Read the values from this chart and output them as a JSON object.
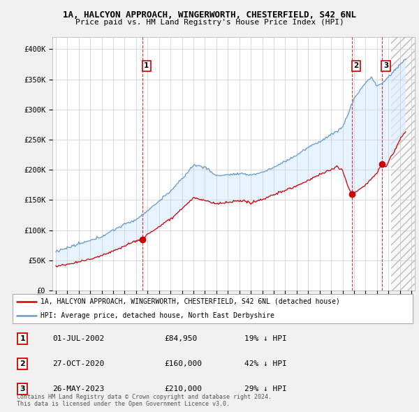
{
  "title1": "1A, HALCYON APPROACH, WINGERWORTH, CHESTERFIELD, S42 6NL",
  "title2": "Price paid vs. HM Land Registry's House Price Index (HPI)",
  "legend_line1": "1A, HALCYON APPROACH, WINGERWORTH, CHESTERFIELD, S42 6NL (detached house)",
  "legend_line2": "HPI: Average price, detached house, North East Derbyshire",
  "transactions": [
    {
      "date": 2002.54,
      "price": 84950,
      "label": "1"
    },
    {
      "date": 2020.83,
      "price": 160000,
      "label": "2"
    },
    {
      "date": 2023.41,
      "price": 210000,
      "label": "3"
    }
  ],
  "transaction_labels": [
    {
      "num": "1",
      "date": "01-JUL-2002",
      "price": "£84,950",
      "pct": "19% ↓ HPI"
    },
    {
      "num": "2",
      "date": "27-OCT-2020",
      "price": "£160,000",
      "pct": "42% ↓ HPI"
    },
    {
      "num": "3",
      "date": "26-MAY-2023",
      "price": "£210,000",
      "pct": "29% ↓ HPI"
    }
  ],
  "footnote": "Contains HM Land Registry data © Crown copyright and database right 2024.\nThis data is licensed under the Open Government Licence v3.0.",
  "hpi_color": "#6699cc",
  "price_color": "#cc0000",
  "fill_color": "#ddeeff",
  "ylim": [
    0,
    420000
  ],
  "xlim_start": 1994.7,
  "xlim_end": 2026.3,
  "bg_color": "#f0f0f0",
  "plot_bg_color": "#ffffff",
  "grid_color": "#cccccc",
  "hatch_start": 2024.25
}
